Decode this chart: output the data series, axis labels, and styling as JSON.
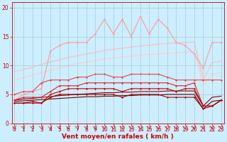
{
  "xlabel": "Vent moyen/en rafales ( km/h )",
  "background_color": "#cceeff",
  "grid_color": "#aacccc",
  "x_values": [
    0,
    1,
    2,
    3,
    4,
    5,
    6,
    7,
    8,
    9,
    10,
    11,
    12,
    13,
    14,
    15,
    16,
    17,
    18,
    19,
    20,
    21,
    22,
    23
  ],
  "lines": [
    {
      "y": [
        9.0,
        9.3,
        9.7,
        10.2,
        10.6,
        11.0,
        11.4,
        11.7,
        12.0,
        12.3,
        12.6,
        12.8,
        13.0,
        13.2,
        13.4,
        13.5,
        13.7,
        13.8,
        13.9,
        14.0,
        14.1,
        7.5,
        10.5,
        10.8
      ],
      "color": "#ffbbbb",
      "lw": 0.8,
      "marker": null,
      "ms": 0,
      "zorder": 1
    },
    {
      "y": [
        7.5,
        7.9,
        8.3,
        8.8,
        9.2,
        9.6,
        10.0,
        10.3,
        10.6,
        10.9,
        11.1,
        11.3,
        11.5,
        11.6,
        11.8,
        11.9,
        12.0,
        12.1,
        12.2,
        12.3,
        12.4,
        6.5,
        8.5,
        8.8
      ],
      "color": "#ffcccc",
      "lw": 0.8,
      "marker": null,
      "ms": 0,
      "zorder": 1
    },
    {
      "y": [
        4.0,
        5.0,
        5.5,
        6.0,
        12.5,
        13.5,
        14.0,
        14.0,
        14.0,
        15.5,
        18.0,
        15.5,
        18.0,
        15.0,
        18.5,
        15.5,
        18.0,
        16.5,
        14.0,
        13.5,
        12.0,
        9.5,
        14.0,
        14.0
      ],
      "color": "#ff9999",
      "lw": 0.8,
      "marker": "D",
      "ms": 1.5,
      "zorder": 3
    },
    {
      "y": [
        5.0,
        5.5,
        5.5,
        7.0,
        7.5,
        7.5,
        7.5,
        8.0,
        8.0,
        8.5,
        8.5,
        8.0,
        8.0,
        8.5,
        8.5,
        8.5,
        8.5,
        8.0,
        7.5,
        7.5,
        7.5,
        7.5,
        7.5,
        7.5
      ],
      "color": "#ee4444",
      "lw": 0.8,
      "marker": "D",
      "ms": 1.5,
      "zorder": 4
    },
    {
      "y": [
        4.0,
        4.5,
        4.5,
        4.5,
        5.5,
        6.5,
        6.5,
        6.5,
        7.0,
        7.0,
        7.0,
        7.0,
        7.0,
        7.0,
        7.0,
        7.0,
        7.0,
        7.0,
        6.5,
        6.5,
        7.0,
        3.0,
        3.0,
        4.0
      ],
      "color": "#dd2222",
      "lw": 0.8,
      "marker": "D",
      "ms": 1.5,
      "zorder": 4
    },
    {
      "y": [
        3.5,
        3.5,
        3.8,
        3.5,
        5.0,
        5.5,
        6.0,
        6.0,
        6.0,
        6.0,
        6.0,
        6.0,
        5.5,
        6.0,
        6.0,
        6.0,
        6.0,
        6.0,
        5.5,
        6.0,
        6.0,
        3.0,
        3.0,
        4.0
      ],
      "color": "#cc0000",
      "lw": 0.8,
      "marker": "D",
      "ms": 1.5,
      "zorder": 4
    },
    {
      "y": [
        3.5,
        3.5,
        3.5,
        3.5,
        4.5,
        5.0,
        5.0,
        5.0,
        5.0,
        5.0,
        5.0,
        5.0,
        4.5,
        5.0,
        5.0,
        5.0,
        5.0,
        4.5,
        4.5,
        4.5,
        4.5,
        2.5,
        3.0,
        4.0
      ],
      "color": "#aa0000",
      "lw": 0.8,
      "marker": "D",
      "ms": 1.5,
      "zorder": 4
    },
    {
      "y": [
        4.0,
        4.2,
        4.3,
        4.5,
        4.6,
        4.8,
        4.9,
        5.0,
        5.1,
        5.2,
        5.3,
        5.3,
        5.4,
        5.4,
        5.5,
        5.5,
        5.5,
        5.6,
        5.6,
        5.6,
        5.6,
        3.0,
        4.5,
        4.7
      ],
      "color": "#880000",
      "lw": 0.8,
      "marker": null,
      "ms": 0,
      "zorder": 2
    },
    {
      "y": [
        3.8,
        3.9,
        4.0,
        4.1,
        4.2,
        4.3,
        4.4,
        4.5,
        4.6,
        4.6,
        4.7,
        4.7,
        4.8,
        4.8,
        4.9,
        4.9,
        4.9,
        5.0,
        5.0,
        5.0,
        5.0,
        2.5,
        3.8,
        4.0
      ],
      "color": "#660000",
      "lw": 0.8,
      "marker": null,
      "ms": 0,
      "zorder": 2
    }
  ],
  "ylim": [
    0,
    21
  ],
  "yticks": [
    0,
    5,
    10,
    15,
    20
  ],
  "xlim": [
    -0.3,
    23.3
  ],
  "tick_color": "#cc0000",
  "tick_fontsize": 5.5,
  "xlabel_fontsize": 6.5
}
